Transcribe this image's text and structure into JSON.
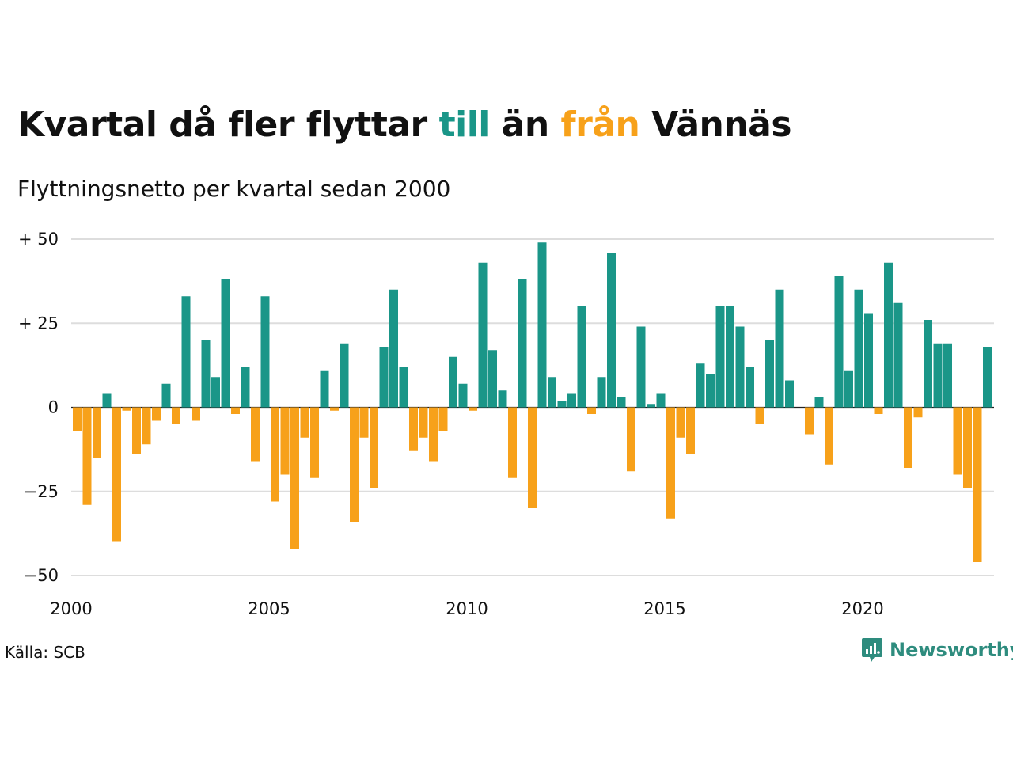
{
  "title": {
    "part1": "Kvartal då fler flyttar ",
    "pos_word": "till",
    "part2": " än ",
    "neg_word": "från",
    "part3": " Vännäs"
  },
  "subtitle": "Flyttningsnetto per kvartal sedan 2000",
  "source": "Källa: SCB",
  "brand": {
    "name": "Newsworthy",
    "icon": "newsworthy-logo-icon"
  },
  "colors": {
    "positive": "#1a9688",
    "negative": "#f7a11a",
    "grid": "#dddddd",
    "brand": "#2e8c7e"
  },
  "chart_data": {
    "type": "bar",
    "title": "Kvartal då fler flyttar till än från Vännäs",
    "subtitle": "Flyttningsnetto per kvartal sedan 2000",
    "xlabel": "",
    "ylabel": "",
    "ylim": [
      -50,
      50
    ],
    "grid": true,
    "y_ticks": [
      {
        "value": 50,
        "label": "+ 50"
      },
      {
        "value": 25,
        "label": "+ 25"
      },
      {
        "value": 0,
        "label": "0"
      },
      {
        "value": -25,
        "label": "−25"
      },
      {
        "value": -50,
        "label": "−50"
      }
    ],
    "x_ticks": [
      {
        "value": 2000,
        "label": "2000"
      },
      {
        "value": 2005,
        "label": "2005"
      },
      {
        "value": 2010,
        "label": "2010"
      },
      {
        "value": 2015,
        "label": "2015"
      },
      {
        "value": 2020,
        "label": "2020"
      }
    ],
    "start_year": 2000,
    "values": [
      -7,
      -29,
      -15,
      4,
      -40,
      -1,
      -14,
      -11,
      -4,
      7,
      -5,
      33,
      -4,
      20,
      9,
      38,
      -2,
      12,
      -16,
      33,
      -28,
      -20,
      -42,
      -9,
      -21,
      11,
      -1,
      19,
      -34,
      -9,
      -24,
      18,
      35,
      12,
      -13,
      -9,
      -16,
      -7,
      15,
      7,
      -1,
      43,
      17,
      5,
      -21,
      38,
      -30,
      49,
      9,
      2,
      4,
      30,
      -2,
      9,
      46,
      3,
      -19,
      24,
      1,
      4,
      -33,
      -9,
      -14,
      13,
      10,
      30,
      30,
      24,
      12,
      -5,
      20,
      35,
      8,
      0,
      -8,
      3,
      -17,
      39,
      11,
      35,
      28,
      -2,
      43,
      31,
      -18,
      -3,
      26,
      19,
      19,
      -20,
      -24,
      -46,
      18
    ]
  }
}
